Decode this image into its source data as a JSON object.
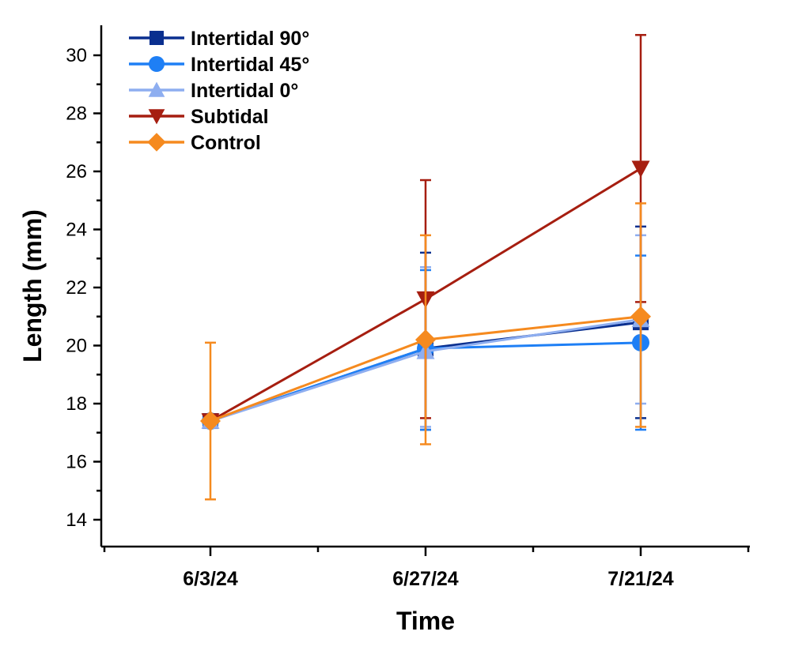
{
  "chart_data": {
    "type": "line",
    "title": "",
    "xlabel": "Time",
    "ylabel": "Length (mm)",
    "categories": [
      "6/3/24",
      "6/27/24",
      "7/21/24"
    ],
    "ylim": [
      13,
      31
    ],
    "yticks": [
      14,
      16,
      18,
      20,
      22,
      24,
      26,
      28,
      30
    ],
    "grid": false,
    "legend_position": "top-left",
    "series": [
      {
        "name": "Intertidal 90°",
        "color": "#0a2f8f",
        "marker": "square",
        "values": [
          17.4,
          19.9,
          20.8
        ],
        "err_low": [
          17.4,
          17.1,
          17.5
        ],
        "err_high": [
          17.4,
          23.2,
          24.1
        ]
      },
      {
        "name": "Intertidal 45°",
        "color": "#1e7ff5",
        "marker": "circle",
        "values": [
          17.4,
          19.9,
          20.1
        ],
        "err_low": [
          17.4,
          17.1,
          17.1
        ],
        "err_high": [
          17.4,
          22.6,
          23.1
        ]
      },
      {
        "name": "Intertidal 0°",
        "color": "#8eaef0",
        "marker": "triangle-up",
        "values": [
          17.4,
          19.8,
          20.9
        ],
        "err_low": [
          17.4,
          17.2,
          18.0
        ],
        "err_high": [
          17.4,
          22.7,
          23.8
        ]
      },
      {
        "name": "Subtidal",
        "color": "#a61e10",
        "marker": "triangle-down",
        "values": [
          17.4,
          21.6,
          26.1
        ],
        "err_low": [
          17.4,
          17.5,
          21.5
        ],
        "err_high": [
          17.4,
          25.7,
          30.7
        ]
      },
      {
        "name": "Control",
        "color": "#f58a1f",
        "marker": "diamond",
        "values": [
          17.4,
          20.2,
          21.0
        ],
        "err_low": [
          14.7,
          16.6,
          17.2
        ],
        "err_high": [
          20.1,
          23.8,
          24.9
        ]
      }
    ]
  }
}
